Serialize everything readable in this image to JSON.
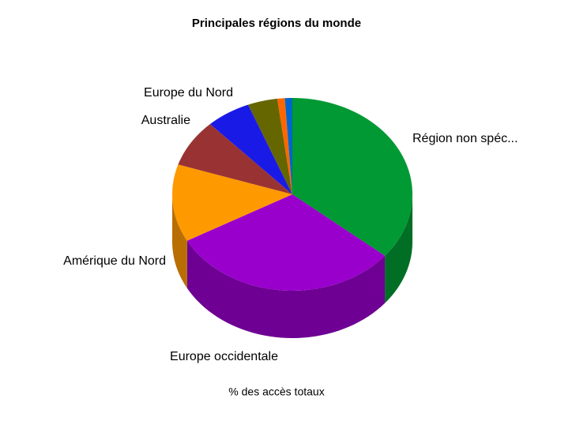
{
  "chart_data": {
    "type": "pie",
    "title": "Principales régions du monde",
    "categories": [
      "Région non spéc...",
      "Europe occidentale",
      "Amérique du Nord",
      "Australie",
      "Europe du Nord",
      null,
      null,
      null
    ],
    "values": [
      36,
      31,
      13,
      8,
      6,
      4,
      1,
      1
    ],
    "colors": [
      "#009933",
      "#9900cc",
      "#ff9900",
      "#993333",
      "#1a1ae6",
      "#666600",
      "#ff6600",
      "#0066cc"
    ],
    "xlabel": "% des accès totaux"
  }
}
